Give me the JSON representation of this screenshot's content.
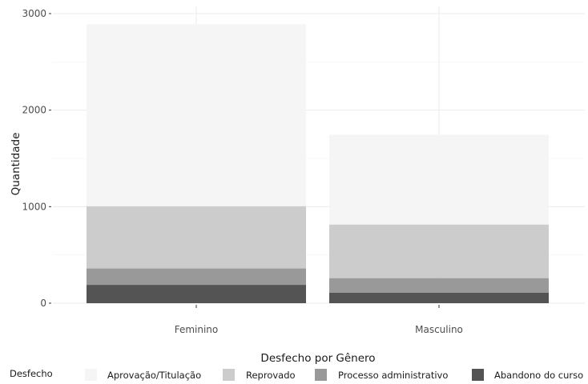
{
  "chart_data": {
    "type": "bar",
    "stacked": true,
    "title": "",
    "xlabel": "Desfecho por Gênero",
    "ylabel": "Quantidade",
    "categories": [
      "Feminino",
      "Masculino"
    ],
    "ylim": [
      0,
      3000
    ],
    "yticks": [
      0,
      1000,
      2000,
      3000
    ],
    "yticks_labels": [
      "0",
      "1000",
      "2000",
      "3000"
    ],
    "grid": true,
    "legend": {
      "title": "Desfecho",
      "position": "bottom"
    },
    "series": [
      {
        "name": "Abandono do curso",
        "color": "#545454",
        "values": [
          190,
          110
        ]
      },
      {
        "name": "Processo administrativo",
        "color": "#999999",
        "values": [
          170,
          150
        ]
      },
      {
        "name": "Reprovado",
        "color": "#cccccc",
        "values": [
          645,
          555
        ]
      },
      {
        "name": "Aprovação/Titulação",
        "color": "#f5f5f5",
        "values": [
          1885,
          930
        ]
      }
    ],
    "legend_order": [
      "Aprovação/Titulação",
      "Reprovado",
      "Processo administrativo",
      "Abandono do curso"
    ]
  }
}
